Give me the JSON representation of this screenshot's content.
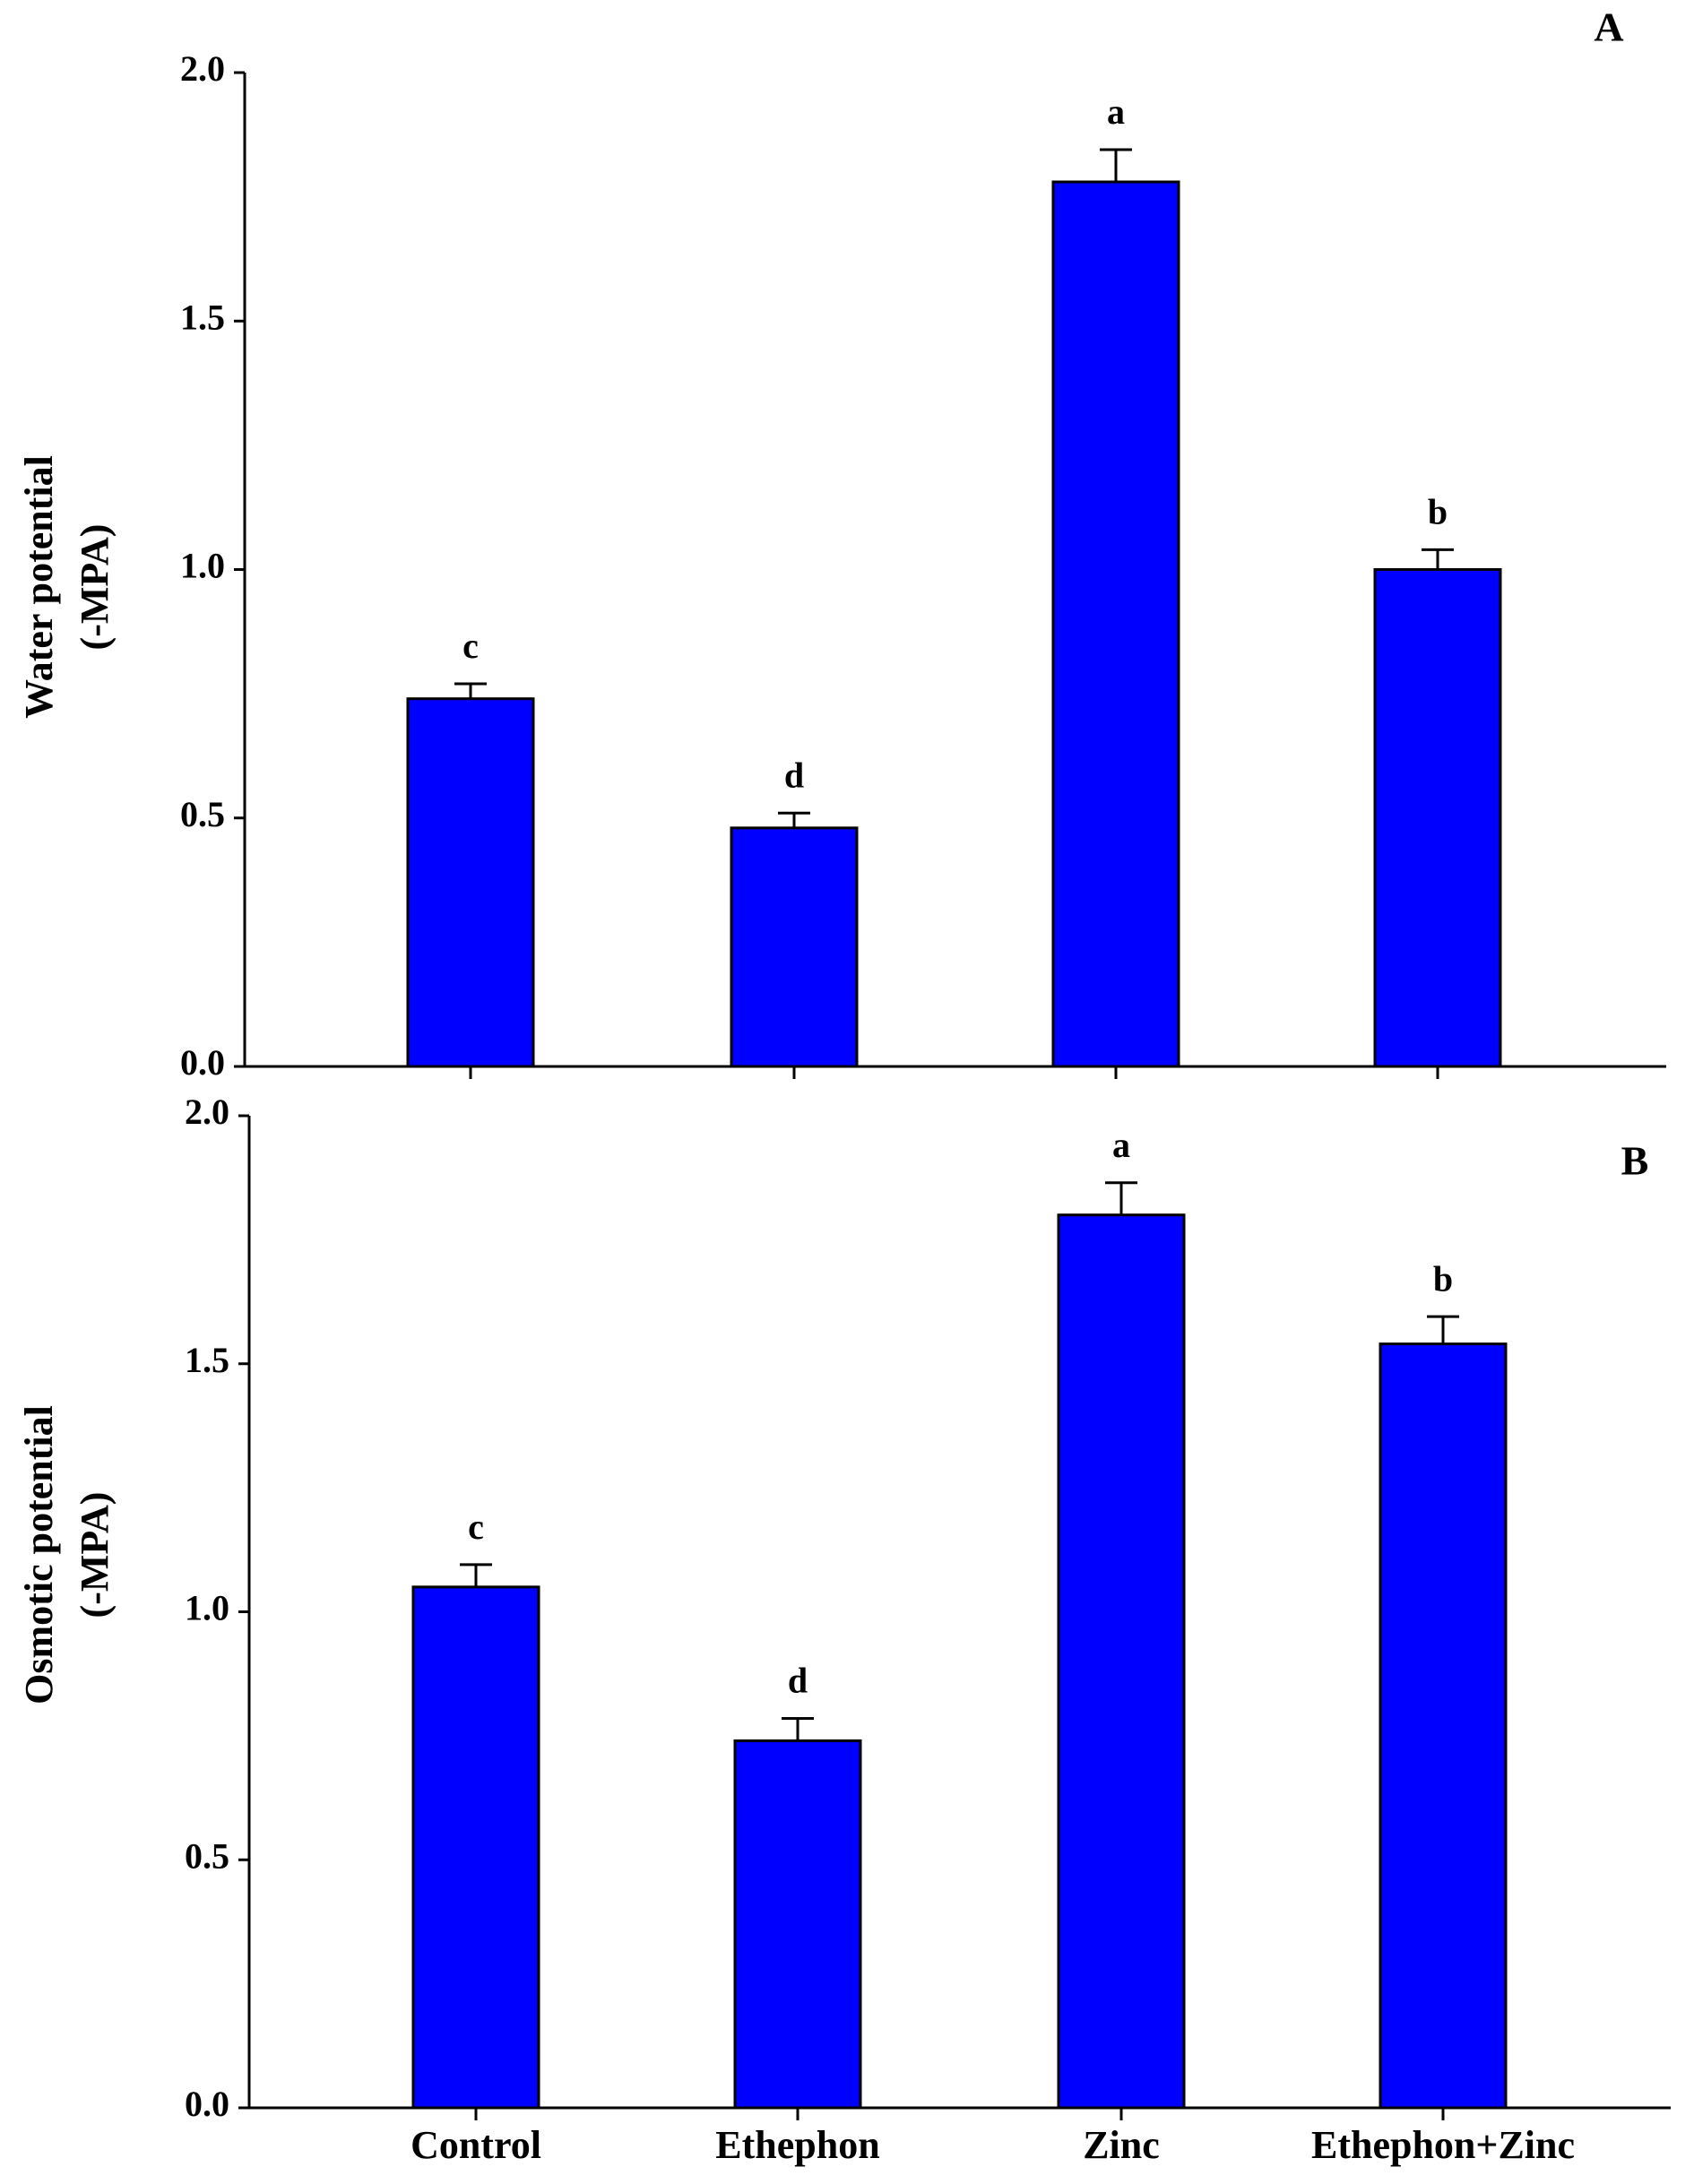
{
  "chart_data": [
    {
      "type": "bar",
      "panel_label": "A",
      "ylabel": [
        "Water potential",
        "(-MPA)"
      ],
      "categories": [
        null,
        null,
        null,
        null
      ],
      "values": [
        0.74,
        0.48,
        1.78,
        1.0
      ],
      "errors": [
        0.03,
        0.03,
        0.065,
        0.04
      ],
      "annotations": [
        "c",
        "d",
        "a",
        "b"
      ],
      "color": "#0000ff",
      "ylim": [
        0,
        2
      ],
      "yticks": [
        {
          "value": 0,
          "label": "0.0"
        },
        0.5,
        {
          "value": 1,
          "label": "1.0"
        },
        1.5,
        {
          "value": 2,
          "label": "2.0"
        }
      ]
    },
    {
      "type": "bar",
      "panel_label": "B",
      "ylabel": [
        "Osmotic potential",
        "(-MPA)"
      ],
      "categories": [
        "Control",
        "Ethephon",
        "Zinc",
        "Ethephon+Zinc"
      ],
      "values": [
        1.05,
        0.74,
        1.8,
        1.54
      ],
      "errors": [
        0.045,
        0.045,
        0.065,
        0.055
      ],
      "annotations": [
        "c",
        "d",
        "a",
        "b"
      ],
      "color": "#0000ff",
      "ylim": [
        0,
        2
      ],
      "yticks": [
        {
          "value": 0,
          "label": "0.0"
        },
        0.5,
        {
          "value": 1,
          "label": "1.0"
        },
        1.5,
        {
          "value": 2,
          "label": "2.0"
        }
      ]
    }
  ]
}
